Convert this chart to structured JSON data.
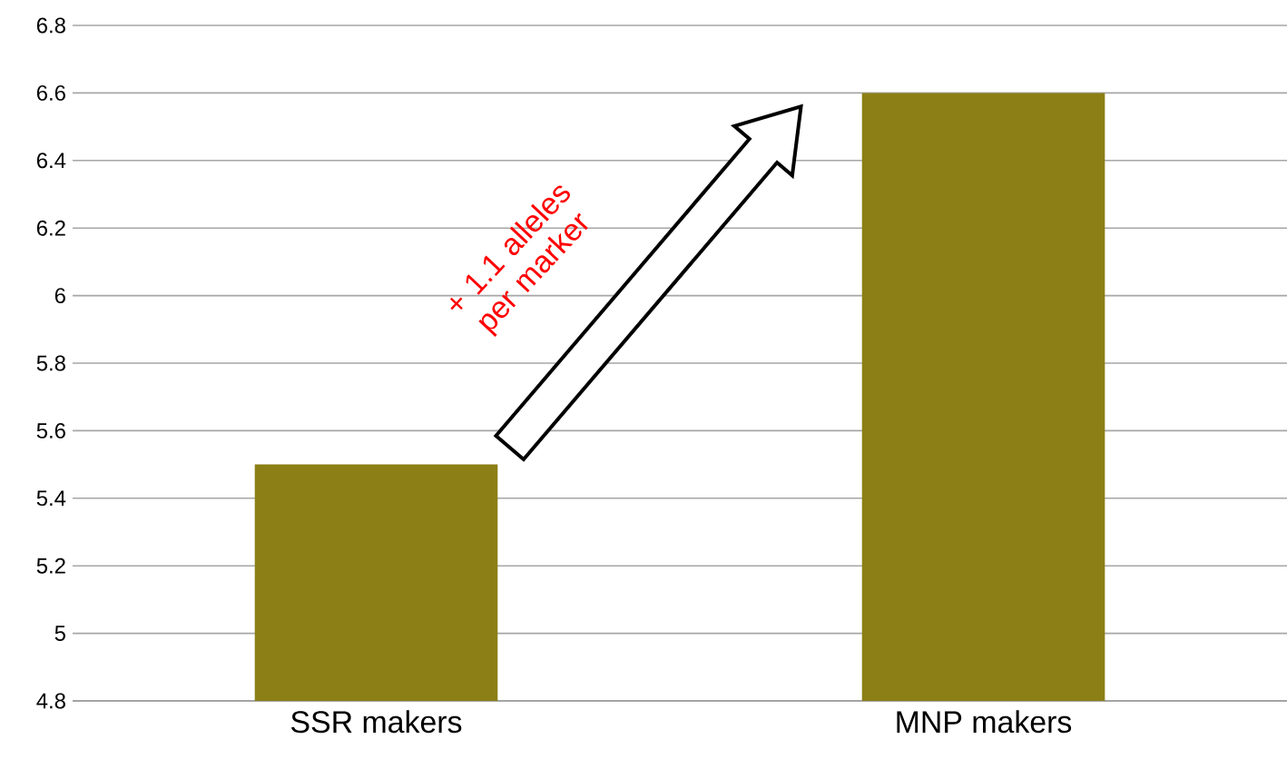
{
  "chart_data": {
    "type": "bar",
    "categories": [
      "SSR makers",
      "MNP makers"
    ],
    "values": [
      5.5,
      6.6
    ],
    "color": "#8b7f16",
    "ylim": [
      4.8,
      6.8
    ],
    "yticks": [
      4.8,
      5,
      5.2,
      5.4,
      5.6,
      5.8,
      6,
      6.2,
      6.4,
      6.6,
      6.8
    ],
    "grid": "y",
    "annotations": [
      "+ 1.1 alleles per marker"
    ]
  }
}
